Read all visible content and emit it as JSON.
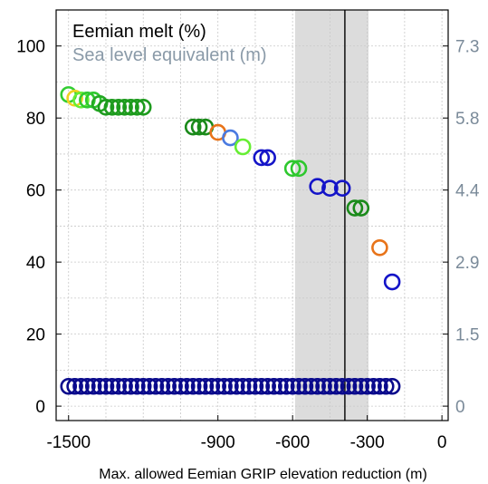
{
  "chart_data": {
    "type": "scatter",
    "xlabel": "Max. allowed Eemian GRIP elevation reduction (m)",
    "ylabel_left": "",
    "ylabel_right": "",
    "xlim": [
      -1550,
      25
    ],
    "ylim": [
      -4,
      110
    ],
    "x_ticks": [
      -1500,
      -900,
      -600,
      -300,
      0
    ],
    "x_tick_labels": [
      "-1500",
      "-900",
      "-600",
      "-300",
      "0"
    ],
    "y_ticks": [
      0,
      20,
      40,
      60,
      80,
      100
    ],
    "y_tick_labels": [
      "0",
      "20",
      "40",
      "60",
      "80",
      "100"
    ],
    "y2_ticks": [
      0,
      20,
      40,
      60,
      80,
      100
    ],
    "y2_tick_labels": [
      "0",
      "1.5",
      "2.9",
      "4.4",
      "5.8",
      "7.3"
    ],
    "grid": true,
    "legend": {
      "placement": "top-left",
      "entries": [
        {
          "label": "Eemian melt (%)",
          "color": "#000000"
        },
        {
          "label": "Sea level equivalent (m)",
          "color": "#8a9aa8"
        }
      ]
    },
    "shaded_region": {
      "x": [
        -590,
        -295
      ],
      "color": "#dcdcdc"
    },
    "vertical_line": {
      "x": -390,
      "color": "#000000"
    },
    "upper_points": [
      {
        "x": -1500,
        "y": 86.5,
        "color": "#32cd32"
      },
      {
        "x": -1475,
        "y": 85.5,
        "color": "#f0d020"
      },
      {
        "x": -1450,
        "y": 85.0,
        "color": "#66ee33"
      },
      {
        "x": -1425,
        "y": 85.0,
        "color": "#2ec82e"
      },
      {
        "x": -1400,
        "y": 85.0,
        "color": "#2ec82e"
      },
      {
        "x": -1375,
        "y": 84.0,
        "color": "#22a822"
      },
      {
        "x": -1350,
        "y": 83.0,
        "color": "#1e9b1e"
      },
      {
        "x": -1325,
        "y": 83.0,
        "color": "#1e9b1e"
      },
      {
        "x": -1300,
        "y": 83.0,
        "color": "#1e9b1e"
      },
      {
        "x": -1275,
        "y": 83.0,
        "color": "#1e9b1e"
      },
      {
        "x": -1250,
        "y": 83.0,
        "color": "#1e9b1e"
      },
      {
        "x": -1225,
        "y": 83.0,
        "color": "#1e9b1e"
      },
      {
        "x": -1200,
        "y": 83.0,
        "color": "#1e9b1e"
      },
      {
        "x": -1000,
        "y": 77.5,
        "color": "#1a8a1a"
      },
      {
        "x": -975,
        "y": 77.5,
        "color": "#1a8a1a"
      },
      {
        "x": -950,
        "y": 77.5,
        "color": "#1a8a1a"
      },
      {
        "x": -900,
        "y": 76.0,
        "color": "#e8741a"
      },
      {
        "x": -850,
        "y": 74.5,
        "color": "#4a7ae0"
      },
      {
        "x": -800,
        "y": 72.0,
        "color": "#66ee33"
      },
      {
        "x": -725,
        "y": 69.0,
        "color": "#1414c8"
      },
      {
        "x": -700,
        "y": 69.0,
        "color": "#1414c8"
      },
      {
        "x": -600,
        "y": 66.0,
        "color": "#2ec82e"
      },
      {
        "x": -575,
        "y": 66.0,
        "color": "#2ec82e"
      },
      {
        "x": -500,
        "y": 61.0,
        "color": "#1414c8"
      },
      {
        "x": -450,
        "y": 60.5,
        "color": "#1414c8"
      },
      {
        "x": -400,
        "y": 60.5,
        "color": "#1414c8"
      },
      {
        "x": -350,
        "y": 55.0,
        "color": "#1a8a1a"
      },
      {
        "x": -325,
        "y": 55.0,
        "color": "#1a8a1a"
      },
      {
        "x": -250,
        "y": 44.0,
        "color": "#e8741a"
      },
      {
        "x": -200,
        "y": 34.5,
        "color": "#1414c8"
      }
    ],
    "baseline_series": {
      "color": "#0a0a8c",
      "y": 5.5,
      "x": [
        -1500,
        -1475,
        -1450,
        -1425,
        -1400,
        -1375,
        -1350,
        -1325,
        -1300,
        -1275,
        -1250,
        -1225,
        -1200,
        -1175,
        -1150,
        -1125,
        -1100,
        -1075,
        -1050,
        -1025,
        -1000,
        -975,
        -950,
        -925,
        -900,
        -875,
        -850,
        -825,
        -800,
        -775,
        -750,
        -725,
        -700,
        -675,
        -650,
        -625,
        -600,
        -575,
        -550,
        -525,
        -500,
        -475,
        -450,
        -425,
        -400,
        -375,
        -350,
        -325,
        -300,
        -275,
        -250,
        -225,
        -200
      ]
    }
  }
}
